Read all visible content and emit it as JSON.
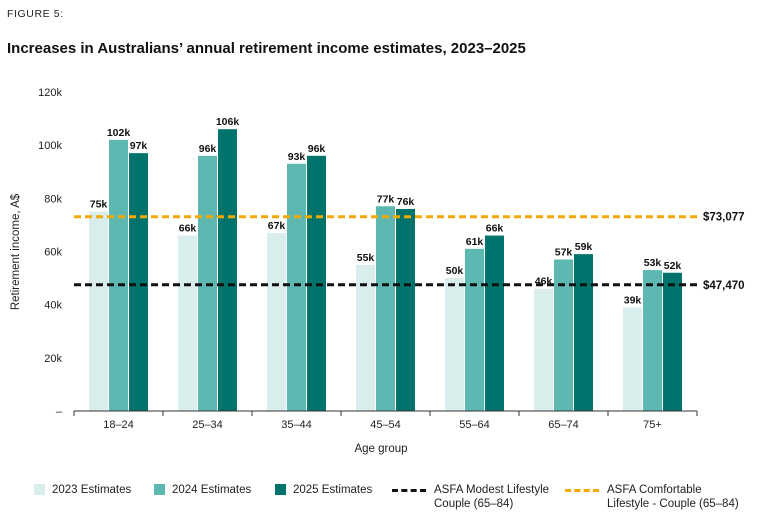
{
  "figure_label": "FIGURE 5:",
  "title": "Increases in Australians’ annual retirement income estimates, 2023–2025",
  "colors": {
    "s2023": "#d9eeec",
    "s2024": "#5cb8b0",
    "s2025": "#00736c",
    "modest": "#111111",
    "comfortable": "#f5a800"
  },
  "legend": {
    "s2023": "2023 Estimates",
    "s2024": "2024 Estimates",
    "s2025": "2025 Estimates",
    "modest_line1": "ASFA Modest Lifestyle",
    "modest_line2": "Couple (65–84)",
    "comfortable_line1": "ASFA Comfortable",
    "comfortable_line2": "Lifestyle - Couple (65–84)"
  },
  "chart_data": {
    "type": "bar",
    "xlabel": "Age group",
    "ylabel": "Retirement income, A$",
    "ylim": [
      0,
      120000
    ],
    "yticks": [
      0,
      20000,
      40000,
      60000,
      80000,
      100000,
      120000
    ],
    "ytick_labels": [
      "–",
      "20k",
      "40k",
      "60k",
      "80k",
      "100k",
      "120k"
    ],
    "categories": [
      "18–24",
      "25–34",
      "35–44",
      "45–54",
      "55–64",
      "65–74",
      "75+"
    ],
    "series": [
      {
        "name": "2023 Estimates",
        "values": [
          75000,
          66000,
          67000,
          55000,
          50000,
          46000,
          39000
        ],
        "labels": [
          "75k",
          "66k",
          "67k",
          "55k",
          "50k",
          "46k",
          "39k"
        ]
      },
      {
        "name": "2024 Estimates",
        "values": [
          102000,
          96000,
          93000,
          77000,
          61000,
          57000,
          53000
        ],
        "labels": [
          "102k",
          "96k",
          "93k",
          "77k",
          "61k",
          "57k",
          "53k"
        ]
      },
      {
        "name": "2025 Estimates",
        "values": [
          97000,
          106000,
          96000,
          76000,
          66000,
          59000,
          52000
        ],
        "labels": [
          "97k",
          "106k",
          "96k",
          "76k",
          "66k",
          "59k",
          "52k"
        ]
      }
    ],
    "reference_lines": [
      {
        "name": "ASFA Comfortable Lifestyle - Couple (65–84)",
        "value": 73077,
        "label": "$73,077"
      },
      {
        "name": "ASFA Modest Lifestyle Couple (65–84)",
        "value": 47470,
        "label": "$47,470"
      }
    ],
    "grid": false,
    "legend_position": "bottom"
  }
}
